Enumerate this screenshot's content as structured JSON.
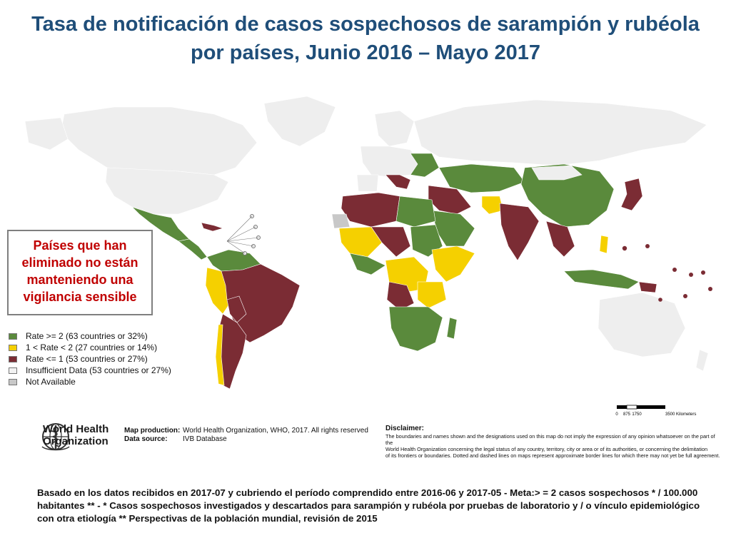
{
  "title": {
    "line1": "Tasa de notificación de casos sospechosos de sarampión y rubéola",
    "line2": "por países, Junio 2016 – Mayo 2017"
  },
  "callout": {
    "line1": "Países que han",
    "line2": "eliminado no están",
    "line3": "manteniendo una",
    "line4": "vigilancia sensible"
  },
  "legend": [
    {
      "label": "Rate >= 2 (63 countries or 32%)",
      "color": "#5a8a3c"
    },
    {
      "label": "1 < Rate < 2  (27 countries or 14%)",
      "color": "#f5d000"
    },
    {
      "label": "Rate <= 1 (53 countries or 27%)",
      "color": "#7b2c34"
    },
    {
      "label": "Insufficient Data (53 countries or 27%)",
      "color": "#f2f2f2"
    },
    {
      "label": "Not Available",
      "color": "#c8c8c8"
    }
  ],
  "colors": {
    "high": "#5a8a3c",
    "mid": "#f5d000",
    "low": "#7b2c34",
    "insufficient": "#eeeeee",
    "na": "#c8c8c8",
    "title": "#1f4e79",
    "callout": "#c00000"
  },
  "scale": {
    "ticks": [
      "0",
      "875",
      "1750",
      "3500 Kilometers"
    ]
  },
  "who": {
    "line1": "World Health",
    "line2": "Organization",
    "icon": "who-emblem-icon"
  },
  "credits": {
    "production_label": "Map production:",
    "production_value": "World Health Organization, WHO, 2017. All rights reserved",
    "source_label": "Data source:",
    "source_value": "IVB Database"
  },
  "disclaimer": {
    "title": "Disclaimer:",
    "line1": "The boundaries and names shown and the designations used on this map do not imply the expression of any opinion whatsoever on the part of the",
    "line2": "World Health Organization concerning the legal status of any country, territory, city or area or of its authorities, or concerning the delimitation",
    "line3": "of its frontiers or boundaries. Dotted and dashed lines on maps represent approximate border lines for which there may not yet be full agreement."
  },
  "footnote": "Basado en los datos recibidos en 2017-07 y cubriendo el período comprendido entre 2016-06 y 2017-05 - Meta:> = 2 casos sospechosos * / 100.000 habitantes ** - * Casos sospechosos investigados y descartados para sarampión y rubéola por pruebas de laboratorio y / o vínculo epidemiológico con otra etiología ** Perspectivas de la población mundial, revisión de 2015"
}
